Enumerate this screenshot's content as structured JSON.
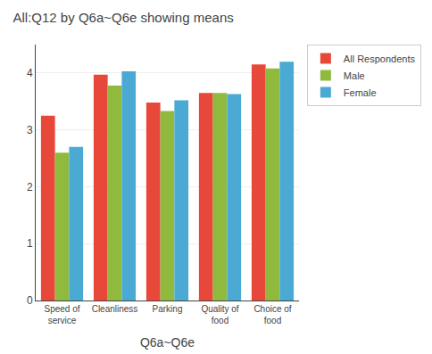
{
  "chart_data": {
    "type": "bar",
    "title": "All:Q12 by Q6a~Q6e showing means",
    "xlabel": "Q6a~Q6e",
    "categories": [
      "Speed of\nservice",
      "Cleanliness",
      "Parking",
      "Quality of\nfood",
      "Choice of\nfood"
    ],
    "series": [
      {
        "name": "All Respondents",
        "color": "#e8483a",
        "values": [
          3.25,
          3.97,
          3.48,
          3.65,
          4.15
        ]
      },
      {
        "name": "Male",
        "color": "#8fba3e",
        "values": [
          2.6,
          3.78,
          3.33,
          3.65,
          4.08
        ]
      },
      {
        "name": "Female",
        "color": "#4aaad4",
        "values": [
          2.7,
          4.03,
          3.52,
          3.63,
          4.2
        ]
      }
    ],
    "ylim": [
      0,
      4.5
    ],
    "yticks": [
      0,
      1,
      2,
      3,
      4
    ],
    "grid": true,
    "legend": "right"
  }
}
